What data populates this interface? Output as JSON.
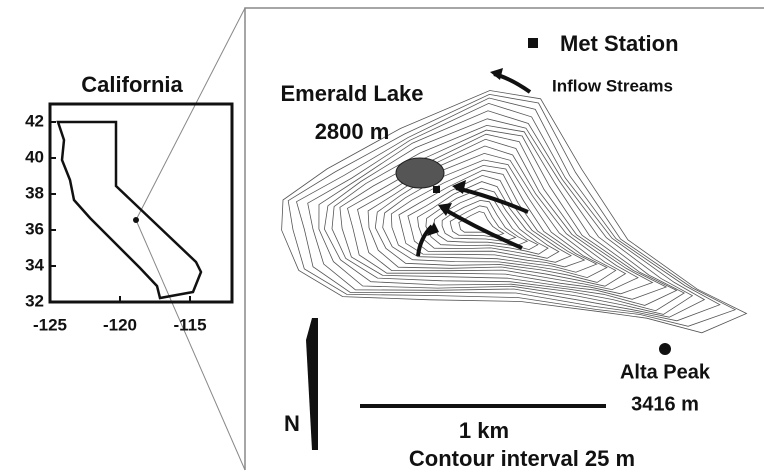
{
  "inset": {
    "title": "California",
    "xlim": [
      -125,
      -112
    ],
    "xticks": [
      -125,
      -120,
      -115
    ],
    "ylim": [
      32,
      43
    ],
    "yticks": [
      42,
      40,
      38,
      36,
      34,
      32
    ]
  },
  "map": {
    "legend": {
      "met_station": "Met Station",
      "inflow_streams": "Inflow Streams"
    },
    "lake": {
      "name": "Emerald Lake",
      "elevation": "2800 m"
    },
    "peak": {
      "name": "Alta Peak",
      "elevation": "3416 m"
    },
    "north": "N",
    "scale": "1 km",
    "contour_note": "Contour interval 25 m"
  }
}
